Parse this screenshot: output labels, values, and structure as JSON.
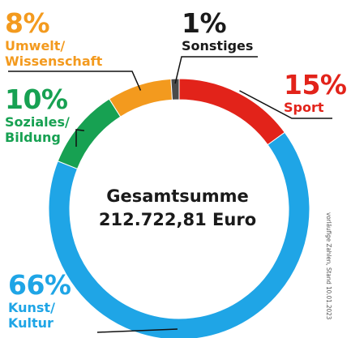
{
  "chart_data": {
    "type": "pie",
    "style": "donut",
    "start_angle_deg": 0,
    "direction": "clockwise",
    "slices": [
      {
        "label_lines": [
          "Sport"
        ],
        "percent_text": "15%",
        "value": 15,
        "color": "#e2231a",
        "label_color": "#e2231a"
      },
      {
        "label_lines": [
          "Kunst/",
          "Kultur"
        ],
        "percent_text": "66%",
        "value": 66,
        "color": "#1fa5e6",
        "label_color": "#1fa5e6"
      },
      {
        "label_lines": [
          "Soziales/",
          "Bildung"
        ],
        "percent_text": "10%",
        "value": 10,
        "color": "#17a152",
        "label_color": "#17a152"
      },
      {
        "label_lines": [
          "Umwelt/",
          "Wissenschaft"
        ],
        "percent_text": "8%",
        "value": 8,
        "color": "#f39a1e",
        "label_color": "#f39a1e"
      },
      {
        "label_lines": [
          "Sonstiges"
        ],
        "percent_text": "1%",
        "value": 1,
        "color": "#4a4a4a",
        "label_color": "#1a1a1a"
      }
    ],
    "center_text": [
      "Gesamtsumme",
      "212.722,81 Euro"
    ],
    "footnote": "vorläufige Zahlen, Stand 10.01.2023"
  }
}
